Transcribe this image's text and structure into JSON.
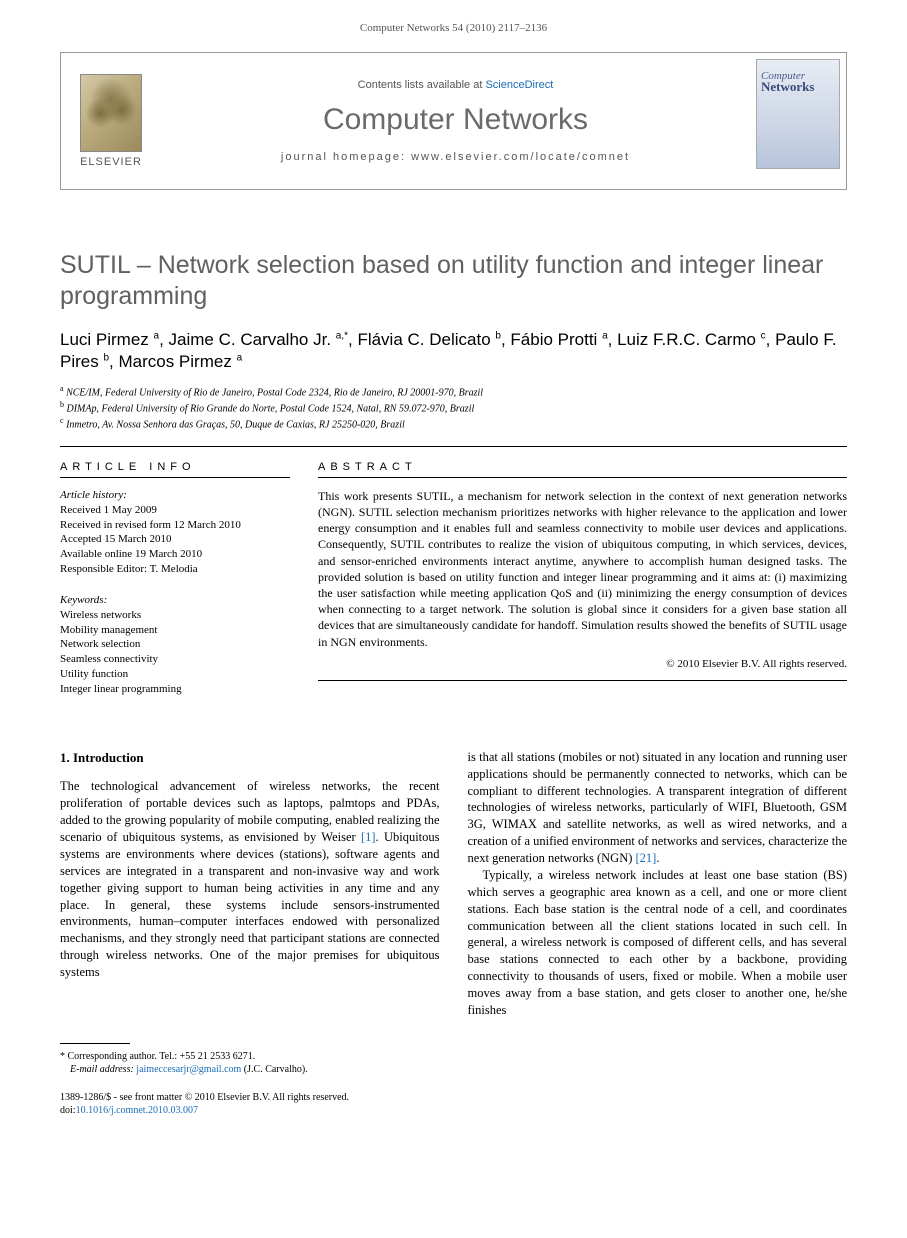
{
  "header": {
    "citation": "Computer Networks 54 (2010) 2117–2136"
  },
  "journal_box": {
    "contents_prefix": "Contents lists available at ",
    "contents_link": "ScienceDirect",
    "journal_name": "Computer Networks",
    "homepage_label": "journal homepage: www.elsevier.com/locate/comnet",
    "elsevier_label": "ELSEVIER",
    "cover_line1": "Computer",
    "cover_line2": "Networks"
  },
  "article": {
    "title": "SUTIL – Network selection based on utility function and integer linear programming",
    "authors_html": "Luci Pirmez <sup>a</sup>, Jaime C. Carvalho Jr. <sup>a,*</sup>, Flávia C. Delicato <sup>b</sup>, Fábio Protti <sup>a</sup>, Luiz F.R.C. Carmo <sup>c</sup>, Paulo F. Pires <sup>b</sup>, Marcos Pirmez <sup>a</sup>",
    "affiliations": [
      "a NCE/IM, Federal University of Rio de Janeiro, Postal Code 2324, Rio de Janeiro, RJ 20001-970, Brazil",
      "b DIMAp, Federal University of Rio Grande do Norte, Postal Code 1524, Natal, RN 59.072-970, Brazil",
      "c Inmetro, Av. Nossa Senhora das Graças, 50, Duque de Caxias, RJ 25250-020, Brazil"
    ]
  },
  "info": {
    "head": "ARTICLE INFO",
    "history_label": "Article history:",
    "history": [
      "Received 1 May 2009",
      "Received in revised form 12 March 2010",
      "Accepted 15 March 2010",
      "Available online 19 March 2010",
      "Responsible Editor: T. Melodia"
    ],
    "keywords_label": "Keywords:",
    "keywords": [
      "Wireless networks",
      "Mobility management",
      "Network selection",
      "Seamless connectivity",
      "Utility function",
      "Integer linear programming"
    ]
  },
  "abstract": {
    "head": "ABSTRACT",
    "text": "This work presents SUTIL, a mechanism for network selection in the context of next generation networks (NGN). SUTIL selection mechanism prioritizes networks with higher relevance to the application and lower energy consumption and it enables full and seamless connectivity to mobile user devices and applications. Consequently, SUTIL contributes to realize the vision of ubiquitous computing, in which services, devices, and sensor-enriched environments interact anytime, anywhere to accomplish human designed tasks. The provided solution is based on utility function and integer linear programming and it aims at: (i) maximizing the user satisfaction while meeting application QoS and (ii) minimizing the energy consumption of devices when connecting to a target network. The solution is global since it considers for a given base station all devices that are simultaneously candidate for handoff. Simulation results showed the benefits of SUTIL usage in NGN environments.",
    "copyright": "© 2010 Elsevier B.V. All rights reserved."
  },
  "body": {
    "section_number": "1.",
    "section_title": "Introduction",
    "col1": "The technological advancement of wireless networks, the recent proliferation of portable devices such as laptops, palmtops and PDAs, added to the growing popularity of mobile computing, enabled realizing the scenario of ubiquitous systems, as envisioned by Weiser [1]. Ubiquitous systems are environments where devices (stations), software agents and services are integrated in a transparent and non-invasive way and work together giving support to human being activities in any time and any place. In general, these systems include sensors-instrumented environments, human–computer interfaces endowed with personalized mechanisms, and they strongly need that participant stations are connected through wireless networks. One of the major premises for ubiquitous systems",
    "col2_p1": "is that all stations (mobiles or not) situated in any location and running user applications should be permanently connected to networks, which can be compliant to different technologies. A transparent integration of different technologies of wireless networks, particularly of WIFI, Bluetooth, GSM 3G, WIMAX and satellite networks, as well as wired networks, and a creation of a unified environment of networks and services, characterize the next generation networks (NGN) [21].",
    "col2_p2": "Typically, a wireless network includes at least one base station (BS) which serves a geographic area known as a cell, and one or more client stations. Each base station is the central node of a cell, and coordinates communication between all the client stations located in such cell. In general, a wireless network is composed of different cells, and has several base stations connected to each other by a backbone, providing connectivity to thousands of users, fixed or mobile. When a mobile user moves away from a base station, and gets closer to another one, he/she finishes"
  },
  "footnotes": {
    "corresponding": "* Corresponding author. Tel.: +55 21 2533 6271.",
    "email_label": "E-mail address:",
    "email": "jaimeccesarjr@gmail.com",
    "email_suffix": "(J.C. Carvalho)."
  },
  "footer": {
    "line1": "1389-1286/$ - see front matter © 2010 Elsevier B.V. All rights reserved.",
    "doi_prefix": "doi:",
    "doi": "10.1016/j.comnet.2010.03.007"
  },
  "refs": {
    "r1": "[1]",
    "r21": "[21]"
  },
  "colors": {
    "link": "#1a6bb8",
    "title_gray": "#606060",
    "header_text": "#555555",
    "background": "#ffffff"
  }
}
